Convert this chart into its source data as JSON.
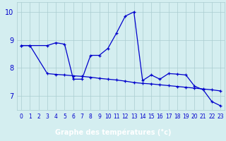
{
  "line1_x": [
    0,
    1,
    3,
    4,
    5,
    6,
    7,
    8,
    9,
    10,
    11,
    12,
    13,
    14,
    15,
    16,
    17,
    18,
    19,
    20,
    21,
    22,
    23
  ],
  "line1_y": [
    8.8,
    8.8,
    8.8,
    8.9,
    8.85,
    7.6,
    7.6,
    8.45,
    8.45,
    8.7,
    9.25,
    9.85,
    10.0,
    7.55,
    7.75,
    7.6,
    7.8,
    7.78,
    7.75,
    7.35,
    7.22,
    6.8,
    6.65
  ],
  "line2_x": [
    0,
    1,
    3,
    4,
    5,
    6,
    7,
    8,
    9,
    10,
    11,
    12,
    13,
    14,
    15,
    16,
    17,
    18,
    19,
    20,
    21,
    22,
    23
  ],
  "line2_y": [
    8.8,
    8.8,
    7.8,
    7.77,
    7.75,
    7.72,
    7.7,
    7.67,
    7.63,
    7.6,
    7.57,
    7.53,
    7.48,
    7.45,
    7.43,
    7.4,
    7.37,
    7.34,
    7.31,
    7.28,
    7.25,
    7.22,
    7.18
  ],
  "line_color": "#0000cc",
  "bg_color": "#d4eef0",
  "grid_color": "#aaccd0",
  "label_bar_color": "#2244bb",
  "xlabel": "Graphe des températures (°c)",
  "ylim": [
    6.5,
    10.35
  ],
  "xlim": [
    -0.5,
    23.5
  ],
  "yticks": [
    7,
    8,
    9,
    10
  ],
  "xticks": [
    0,
    1,
    2,
    3,
    4,
    5,
    6,
    7,
    8,
    9,
    10,
    11,
    12,
    13,
    14,
    15,
    16,
    17,
    18,
    19,
    20,
    21,
    22,
    23
  ],
  "tick_fontsize": 5.5,
  "ytick_fontsize": 7.0,
  "xlabel_fontsize": 7.0
}
